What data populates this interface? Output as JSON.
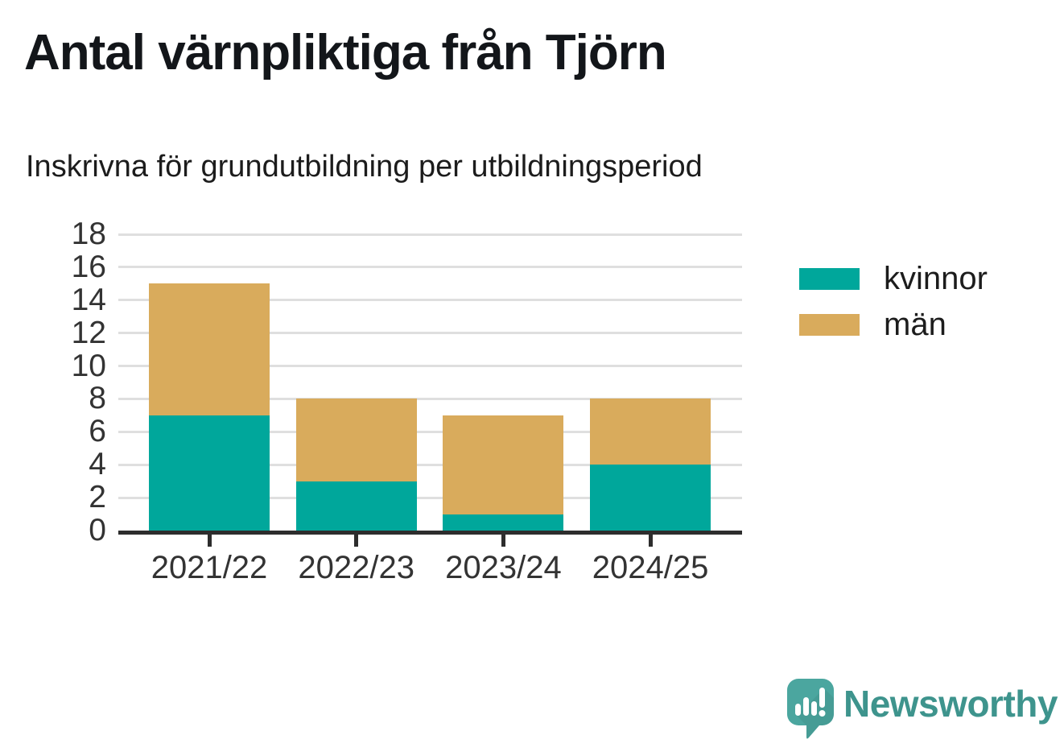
{
  "chart_data": {
    "type": "bar",
    "stacked": true,
    "title": "Antal värnpliktiga från Tjörn",
    "subtitle": "Inskrivna för grundutbildning per utbildningsperiod",
    "categories": [
      "2021/22",
      "2022/23",
      "2023/24",
      "2024/25"
    ],
    "series": [
      {
        "name": "kvinnor",
        "color": "#00a79b",
        "values": [
          7,
          3,
          1,
          4
        ]
      },
      {
        "name": "män",
        "color": "#d9ab5c",
        "values": [
          8,
          5,
          6,
          4
        ]
      }
    ],
    "totals": [
      15,
      8,
      7,
      8
    ],
    "xlabel": "",
    "ylabel": "",
    "ylim": [
      0,
      18
    ],
    "yticks": [
      0,
      2,
      4,
      6,
      8,
      10,
      12,
      14,
      16,
      18
    ],
    "grid": true,
    "legend_position": "right"
  },
  "branding": {
    "logo_text": "Newsworthy",
    "logo_color": "#3e948d",
    "bubble_color": "#4ba69f"
  }
}
